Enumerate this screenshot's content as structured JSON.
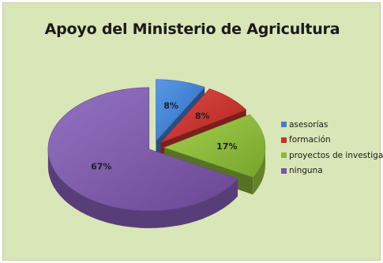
{
  "chart_data": {
    "type": "pie",
    "title": "Apoyo del Ministerio de Agricultura",
    "categories": [
      "asesorías",
      "formación",
      "proyectos de investigación",
      "ninguna"
    ],
    "values": [
      8,
      8,
      17,
      67
    ],
    "labels": [
      "8%",
      "8%",
      "17%",
      "67%"
    ],
    "colors": [
      "#3f7fcf",
      "#c7322e",
      "#8bb83a",
      "#7a56a6"
    ],
    "legend_position": "right",
    "style": "3d-exploded"
  }
}
